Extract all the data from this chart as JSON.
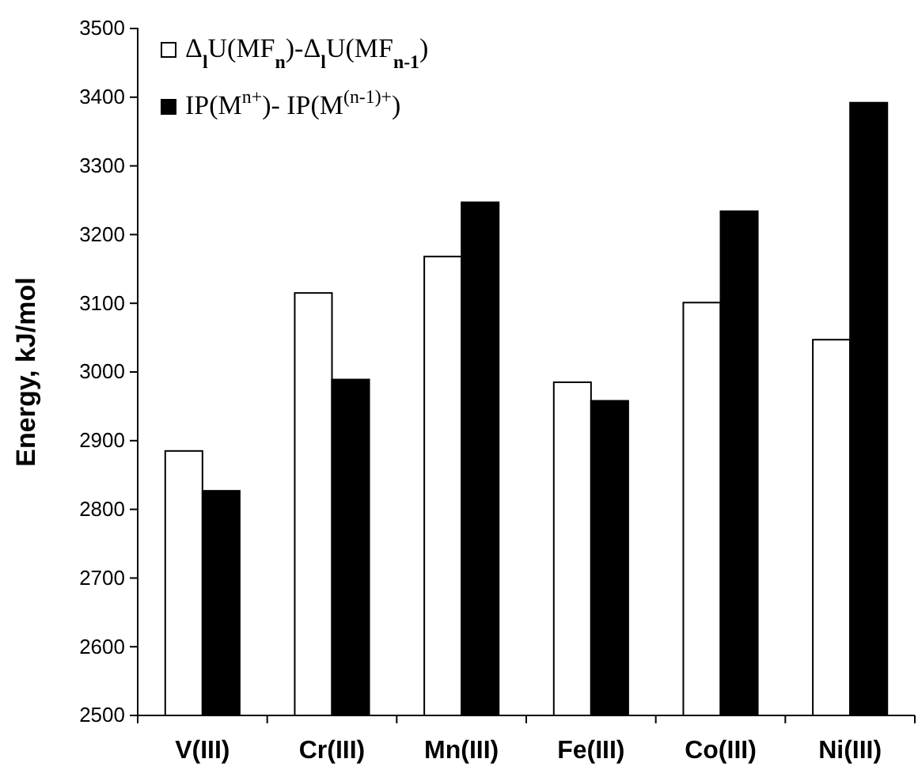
{
  "chart_data": {
    "type": "bar",
    "ylabel": "Energy, kJ/mol",
    "categories": [
      "V(III)",
      "Cr(III)",
      "Mn(III)",
      "Fe(III)",
      "Co(III)",
      "Ni(III)"
    ],
    "series": [
      {
        "name": "Δ$_{l}$U(MF$_{n}$)-Δ$_{l}$U(MF$_{n-1}$)",
        "color": "#ffffff",
        "values": [
          2885,
          3115,
          3168,
          2985,
          3101,
          3047
        ]
      },
      {
        "name": "IP(M$^{n+}$)- IP(M$^{(n-1)+}$)",
        "color": "#000000",
        "values": [
          2827,
          2989,
          3247,
          2958,
          3234,
          3392
        ]
      }
    ],
    "ylim": [
      2500,
      3500
    ],
    "yticks": [
      2500,
      2600,
      2700,
      2800,
      2900,
      3000,
      3100,
      3200,
      3300,
      3400,
      3500
    ],
    "grid": false,
    "legend": "top left"
  }
}
